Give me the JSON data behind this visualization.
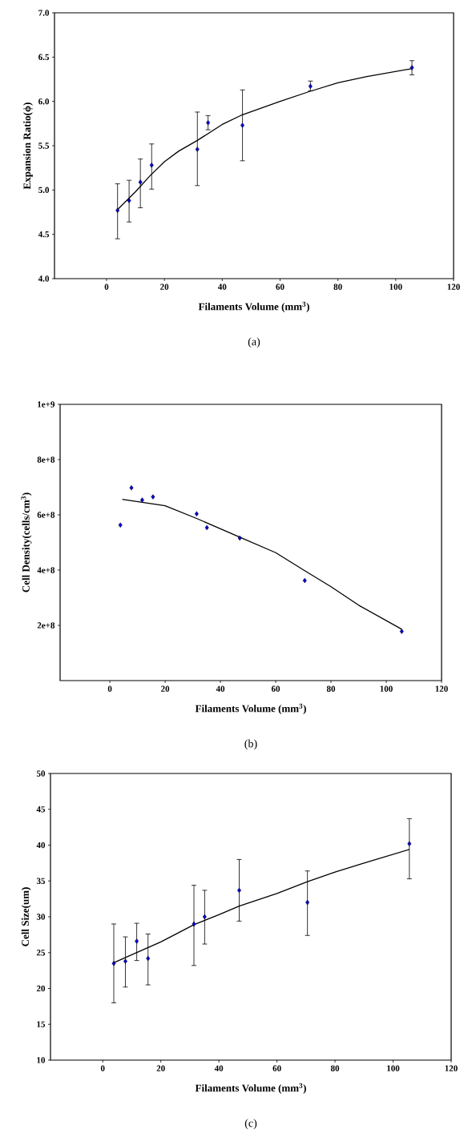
{
  "chart_data": [
    {
      "type": "scatter",
      "xlabel": "Filaments Volume (mm$^{3}$)",
      "ylabel": "Expansion Ratio(ϕ)",
      "annotations": [
        "(a)"
      ],
      "marker": "diamond",
      "xlim": [
        -18,
        120
      ],
      "ylim": [
        4,
        7
      ],
      "xticks": [
        0,
        20,
        40,
        60,
        80,
        100,
        120
      ],
      "yticks": [
        {
          "value": 4,
          "label": "4.0"
        },
        4.5,
        {
          "value": 5,
          "label": "5.0"
        },
        5.5,
        {
          "value": 6,
          "label": "6.0"
        },
        6.5,
        {
          "value": 7,
          "label": "7.0"
        }
      ],
      "series": [
        {
          "color": "#000000",
          "x": [
            3.8,
            7.8,
            11.7,
            15.6,
            31.4,
            35.1,
            47,
            70.5,
            105.6
          ],
          "values": [
            4.77,
            4.88,
            5.09,
            5.28,
            5.46,
            5.76,
            5.73,
            6.17,
            6.38
          ],
          "errors": [
            [
              4.45,
              5.07
            ],
            [
              4.64,
              5.11
            ],
            [
              4.8,
              5.35
            ],
            [
              5.01,
              5.52
            ],
            [
              5.05,
              5.88
            ],
            [
              5.68,
              5.84
            ],
            [
              5.33,
              6.13
            ],
            [
              6.12,
              6.23
            ],
            [
              6.3,
              6.46
            ]
          ]
        },
        {
          "type": "line",
          "color": "#000000",
          "line_style": "solid",
          "marker": "none",
          "x": [
            3.8,
            10,
            15,
            20,
            25,
            31.4,
            40,
            47,
            60,
            70,
            80,
            90,
            105.6
          ],
          "values": [
            4.78,
            4.98,
            5.16,
            5.32,
            5.44,
            5.56,
            5.74,
            5.85,
            6.0,
            6.11,
            6.21,
            6.28,
            6.37
          ]
        }
      ]
    },
    {
      "type": "scatter",
      "xlabel": "Filaments Volume (mm$^{3}$)",
      "ylabel": "Cell Density(cells/cm$^{3}$)",
      "annotations": [
        "(b)"
      ],
      "marker": "diamond",
      "xlim": [
        -18,
        120
      ],
      "ylim": [
        0,
        1000000000
      ],
      "xticks": [
        0,
        20,
        40,
        60,
        80,
        100,
        120
      ],
      "yticks": [
        {
          "value": 200000000,
          "label": "2e+8"
        },
        {
          "value": 400000000,
          "label": "4e+8"
        },
        {
          "value": 600000000,
          "label": "6e+8"
        },
        {
          "value": 800000000,
          "label": "8e+8"
        },
        {
          "value": 1000000000,
          "label": "1e+9"
        }
      ],
      "series": [
        {
          "color": "#000000",
          "x": [
            3.8,
            7.8,
            11.7,
            15.6,
            31.4,
            35.1,
            47,
            70.5,
            105.6
          ],
          "values": [
            563000000,
            698000000,
            654000000,
            665000000,
            604000000,
            554000000,
            516000000,
            362000000,
            178000000
          ]
        },
        {
          "type": "line",
          "color": "#000000",
          "line_style": "solid",
          "marker": "none",
          "x": [
            4.5,
            20,
            31.4,
            47,
            60,
            70.5,
            80,
            90,
            105.6
          ],
          "values": [
            656000000,
            633000000,
            587000000,
            519000000,
            463000000,
            398000000,
            340000000,
            273000000,
            186000000
          ]
        }
      ]
    },
    {
      "type": "scatter",
      "xlabel": "Filaments Volume (mm$^{3}$)",
      "ylabel": "Cell Size(um)",
      "annotations": [
        "(c)"
      ],
      "marker": "diamond",
      "xlim": [
        -18,
        120
      ],
      "ylim": [
        10,
        50
      ],
      "xticks": [
        0,
        20,
        40,
        60,
        80,
        100,
        120
      ],
      "yticks": [
        10,
        15,
        20,
        25,
        30,
        35,
        40,
        45,
        50
      ],
      "series": [
        {
          "color": "#000000",
          "x": [
            3.8,
            7.8,
            11.7,
            15.6,
            31.4,
            35.1,
            47,
            70.5,
            105.6
          ],
          "values": [
            23.5,
            23.8,
            26.6,
            24.2,
            29,
            30,
            33.7,
            32,
            40.2
          ],
          "errors": [
            [
              18,
              29
            ],
            [
              20.2,
              27.2
            ],
            [
              23.9,
              29.1
            ],
            [
              20.5,
              27.6
            ],
            [
              23.2,
              34.4
            ],
            [
              26.2,
              33.7
            ],
            [
              29.4,
              38
            ],
            [
              27.4,
              36.4
            ],
            [
              35.3,
              43.7
            ]
          ]
        },
        {
          "type": "line",
          "color": "#000000",
          "line_style": "solid",
          "marker": "none",
          "x": [
            3.8,
            10,
            20,
            31.4,
            40,
            47,
            60,
            70.5,
            80,
            90,
            105.6
          ],
          "values": [
            23.6,
            24.7,
            26.5,
            28.9,
            30.3,
            31.5,
            33.25,
            34.9,
            36.25,
            37.5,
            39.4
          ]
        }
      ]
    }
  ]
}
